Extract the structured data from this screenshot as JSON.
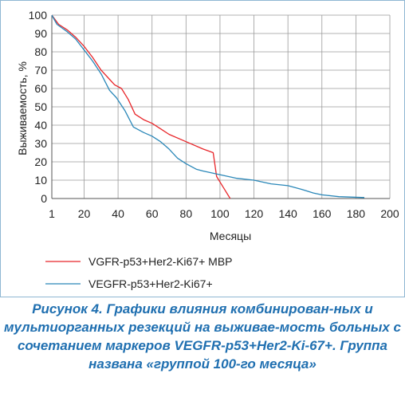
{
  "chart_data": {
    "type": "line",
    "title": "",
    "xlabel": "Месяцы",
    "ylabel": "Выживаемость, %",
    "xlim": [
      1,
      200
    ],
    "ylim": [
      0,
      100
    ],
    "x_ticks": [
      "1",
      "20",
      "40",
      "60",
      "80",
      "100",
      "120",
      "140",
      "160",
      "180",
      "200"
    ],
    "y_ticks": [
      "0",
      "10",
      "20",
      "30",
      "40",
      "50",
      "60",
      "70",
      "80",
      "90",
      "100"
    ],
    "grid": true,
    "legend_position": "bottom",
    "series": [
      {
        "name": "VGFR-p53+Her2-Ki67+ МВР",
        "color": "#e8262a",
        "points": [
          [
            1,
            100
          ],
          [
            5,
            95
          ],
          [
            10,
            92
          ],
          [
            15,
            88
          ],
          [
            20,
            83
          ],
          [
            25,
            77
          ],
          [
            30,
            70
          ],
          [
            35,
            65
          ],
          [
            38,
            62
          ],
          [
            42,
            60
          ],
          [
            46,
            54
          ],
          [
            50,
            46
          ],
          [
            55,
            43
          ],
          [
            60,
            41
          ],
          [
            65,
            38
          ],
          [
            70,
            35
          ],
          [
            80,
            31
          ],
          [
            90,
            27
          ],
          [
            96,
            25
          ],
          [
            98,
            12
          ],
          [
            102,
            6
          ],
          [
            106,
            0
          ]
        ]
      },
      {
        "name": "VEGFR-p53+Her2-Ki67+",
        "color": "#2a87b8",
        "points": [
          [
            1,
            100
          ],
          [
            4,
            95
          ],
          [
            10,
            91
          ],
          [
            15,
            87
          ],
          [
            20,
            81
          ],
          [
            25,
            75
          ],
          [
            30,
            68
          ],
          [
            35,
            59
          ],
          [
            39,
            55
          ],
          [
            44,
            48
          ],
          [
            49,
            39
          ],
          [
            55,
            36
          ],
          [
            60,
            34
          ],
          [
            65,
            31
          ],
          [
            70,
            27
          ],
          [
            75,
            22
          ],
          [
            80,
            19
          ],
          [
            86,
            16
          ],
          [
            90,
            15
          ],
          [
            100,
            13
          ],
          [
            110,
            11
          ],
          [
            120,
            10
          ],
          [
            130,
            8
          ],
          [
            140,
            7
          ],
          [
            148,
            5
          ],
          [
            155,
            3
          ],
          [
            160,
            2
          ],
          [
            170,
            1
          ],
          [
            185,
            0.5
          ]
        ]
      }
    ]
  },
  "caption": {
    "text": "Рисунок 4. Графики влияния комбинирован-ных и мультиорганных резекций на выживае-мость больных с сочетанием маркеров VEGFR-p53+Her2-Ki-67+. Группа названа «группой 100-го месяца»"
  }
}
